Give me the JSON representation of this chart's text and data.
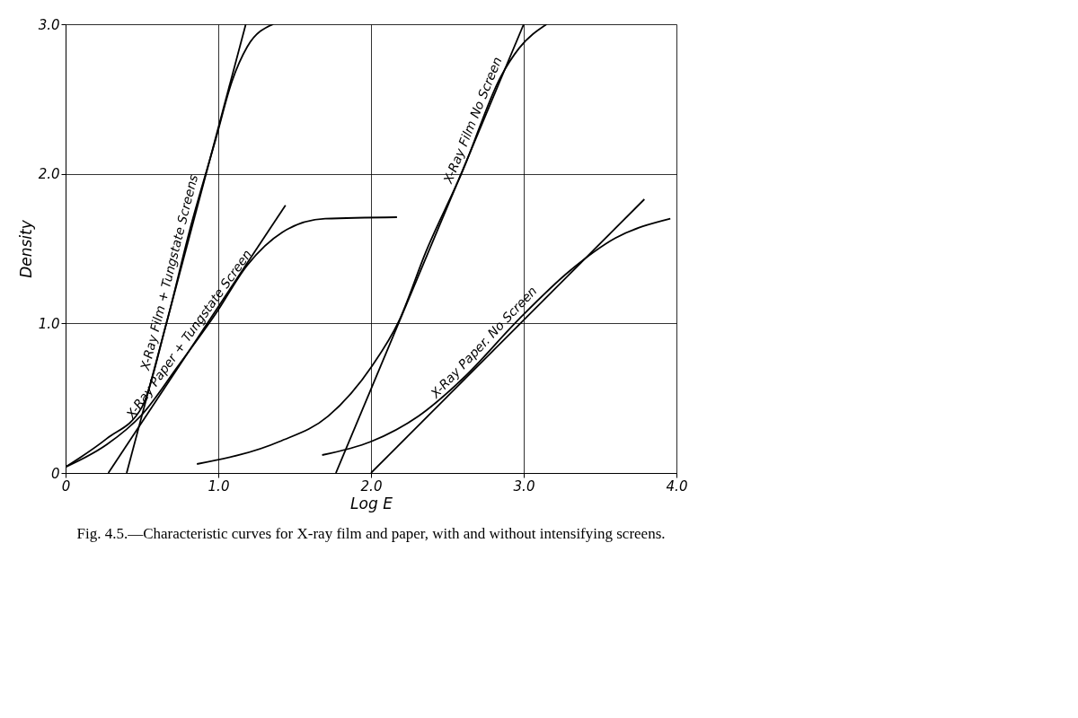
{
  "chart_data": {
    "type": "line",
    "xlabel": "Log E",
    "ylabel": "Density",
    "xlim": [
      0,
      4
    ],
    "ylim": [
      0,
      3
    ],
    "xticks": [
      0,
      {
        "value": 1,
        "label": "1.0"
      },
      {
        "value": 2,
        "label": "2.0"
      },
      {
        "value": 3,
        "label": "3.0"
      },
      {
        "value": 4,
        "label": "4.0"
      }
    ],
    "yticks": [
      0,
      {
        "value": 1,
        "label": "1.0"
      },
      {
        "value": 2,
        "label": "2.0"
      },
      {
        "value": 3,
        "label": "3.0"
      }
    ],
    "grid": true,
    "annotations": [
      "Fig. 4.5.—Characteristic curves for X-ray film and paper, with and without intensifying screens."
    ],
    "series": [
      {
        "name": "X-Ray Film + Tungstate Screens",
        "color": "#000000",
        "x": [
          0,
          0.27,
          0.5,
          0.66,
          0.82,
          0.98,
          1.09,
          1.19,
          1.36
        ],
        "values": [
          0.04,
          0.23,
          0.44,
          1.0,
          1.65,
          2.22,
          2.62,
          2.85,
          3.0
        ]
      },
      {
        "type": "line",
        "color": "#000000",
        "x": [
          0.4,
          1.18
        ],
        "values": [
          0,
          3.0
        ]
      },
      {
        "name": "X-Ray Paper + Tungstate Screen",
        "color": "#000000",
        "x": [
          0,
          0.27,
          0.5,
          0.74,
          0.98,
          1.19,
          1.42,
          1.7,
          2.17
        ],
        "values": [
          0.04,
          0.19,
          0.39,
          0.72,
          1.06,
          1.39,
          1.61,
          1.7,
          1.71
        ]
      },
      {
        "type": "line",
        "color": "#000000",
        "x": [
          0.28,
          1.44
        ],
        "values": [
          0,
          1.79
        ]
      },
      {
        "name": "X-Ray Film  No Screen",
        "color": "#000000",
        "x": [
          0.86,
          1.4,
          1.72,
          2.01,
          2.18,
          2.36,
          2.6,
          2.85,
          2.97,
          3.15
        ],
        "values": [
          0.06,
          0.21,
          0.38,
          0.72,
          1.01,
          1.48,
          2.02,
          2.65,
          2.84,
          3.0
        ]
      },
      {
        "type": "line",
        "color": "#000000",
        "x": [
          1.77,
          3.0
        ],
        "values": [
          0,
          3.0
        ]
      },
      {
        "name": "X-Ray Paper. No Screen",
        "color": "#000000",
        "x": [
          1.68,
          2.0,
          2.31,
          2.6,
          2.97,
          3.3,
          3.6,
          3.96
        ],
        "values": [
          0.12,
          0.21,
          0.38,
          0.63,
          1.03,
          1.35,
          1.57,
          1.7
        ]
      },
      {
        "type": "line",
        "color": "#000000",
        "x": [
          2.0,
          3.79
        ],
        "values": [
          0,
          1.83
        ]
      }
    ]
  }
}
